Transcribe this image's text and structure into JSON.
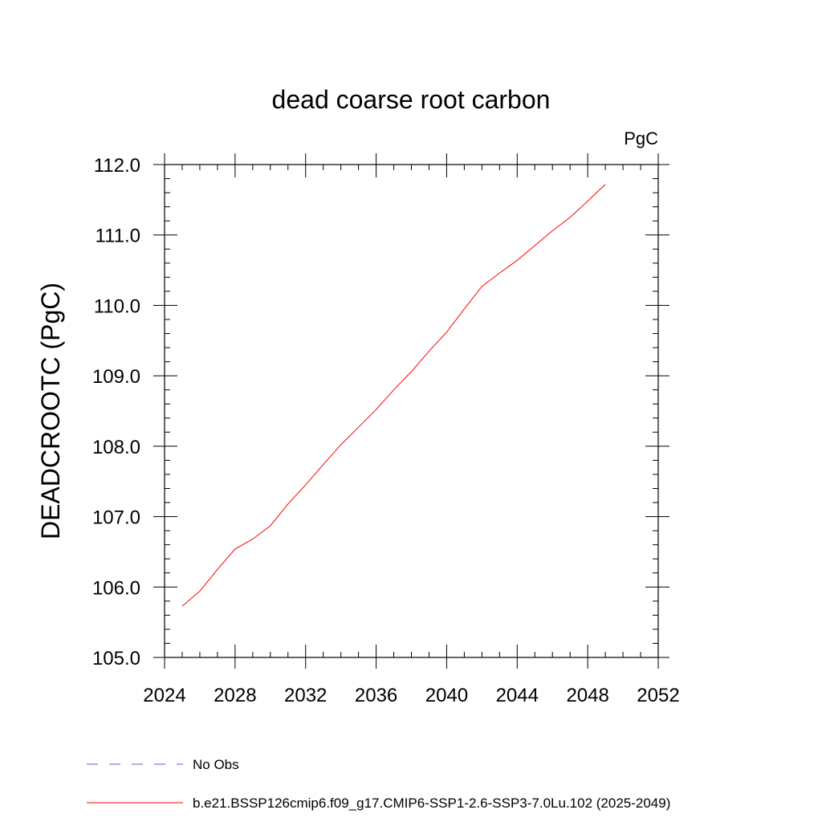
{
  "chart_data": {
    "type": "line",
    "title": "dead coarse root carbon",
    "units_label": "PgC",
    "ylabel": "DEADCROOTC  (PgC)",
    "xlabel": "",
    "xlim": [
      2024,
      2052
    ],
    "ylim": [
      105.0,
      112.0
    ],
    "x_ticks": [
      "2024",
      "2028",
      "2032",
      "2036",
      "2040",
      "2044",
      "2048",
      "2052"
    ],
    "y_ticks": [
      "105.0",
      "106.0",
      "107.0",
      "108.0",
      "109.0",
      "110.0",
      "111.0",
      "112.0"
    ],
    "x": [
      2025,
      2026,
      2027,
      2028,
      2029,
      2030,
      2031,
      2032,
      2033,
      2034,
      2035,
      2036,
      2037,
      2038,
      2039,
      2040,
      2041,
      2042,
      2043,
      2044,
      2045,
      2046,
      2047,
      2048,
      2049
    ],
    "series": [
      {
        "name": "b.e21.BSSP126cmip6.f09_g17.CMIP6-SSP1-2.6-SSP3-7.0Lu.102 (2025-2049)",
        "color": "#ff0000",
        "dash": "solid",
        "values": [
          105.73,
          105.94,
          106.25,
          106.54,
          106.68,
          106.87,
          107.18,
          107.45,
          107.74,
          108.02,
          108.27,
          108.52,
          108.8,
          109.06,
          109.35,
          109.62,
          109.95,
          110.27,
          110.46,
          110.64,
          110.85,
          111.06,
          111.25,
          111.48,
          111.72
        ]
      }
    ],
    "legend": [
      {
        "label": "No Obs",
        "color": "#6a5acd",
        "dash": "dashed"
      },
      {
        "label": "b.e21.BSSP126cmip6.f09_g17.CMIP6-SSP1-2.6-SSP3-7.0Lu.102 (2025-2049)",
        "color": "#ff0000",
        "dash": "solid"
      }
    ],
    "legend_position": "bottom",
    "grid": false
  }
}
